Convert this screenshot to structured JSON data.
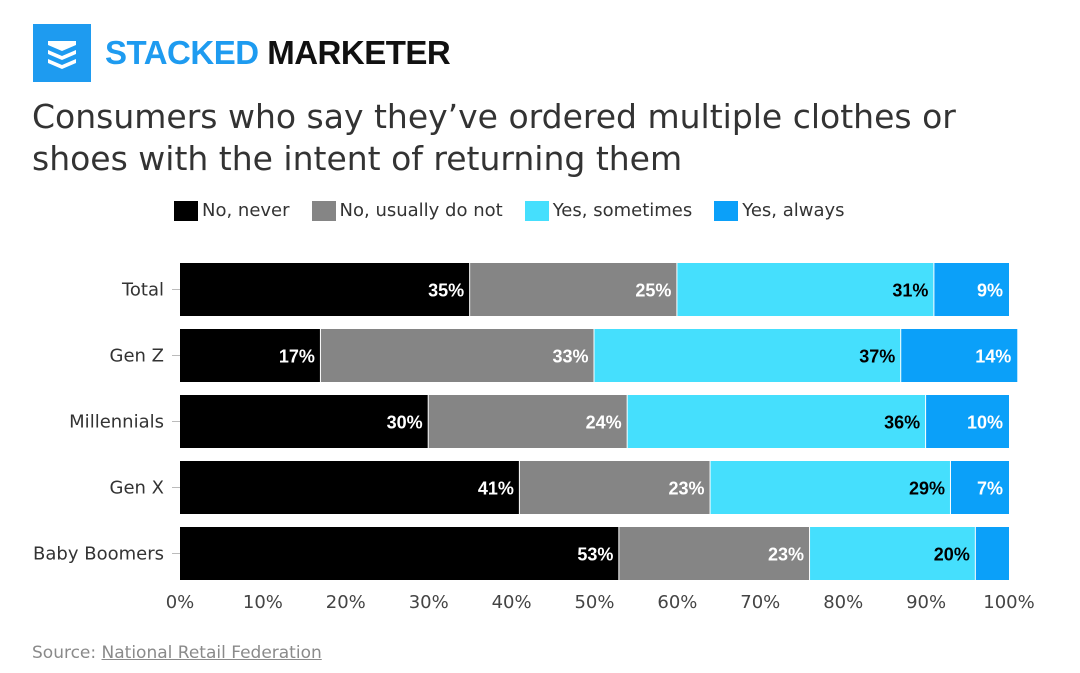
{
  "brand": {
    "name_part1": "STACKED",
    "name_part2": "MARKETER",
    "logo_icon": "stacked-layers-icon",
    "accent": "#1E9BF0"
  },
  "source": {
    "label": "Source:",
    "link_text": "National Retail Federation"
  },
  "chart_data": {
    "type": "bar",
    "orientation": "horizontal",
    "stacked": true,
    "title": "Consumers who say they’ve ordered multiple clothes or shoes with the intent of returning them",
    "categories": [
      "Total",
      "Gen Z",
      "Millennials",
      "Gen X",
      "Baby Boomers"
    ],
    "series": [
      {
        "name": "No, never",
        "color": "#000000",
        "label_color": "#ffffff",
        "values": [
          35,
          17,
          30,
          41,
          53
        ]
      },
      {
        "name": "No, usually do not",
        "color": "#858585",
        "label_color": "#ffffff",
        "values": [
          25,
          33,
          24,
          23,
          23
        ]
      },
      {
        "name": "Yes, sometimes",
        "color": "#45DFFD",
        "label_color": "#000000",
        "values": [
          31,
          37,
          36,
          29,
          20
        ]
      },
      {
        "name": "Yes, always",
        "color": "#0BA0F9",
        "label_color": "#ffffff",
        "values": [
          9,
          14,
          10,
          7,
          4
        ]
      }
    ],
    "labels": [
      [
        "35%",
        "25%",
        "31%",
        "9%"
      ],
      [
        "17%",
        "33%",
        "37%",
        "14%"
      ],
      [
        "30%",
        "24%",
        "36%",
        "10%"
      ],
      [
        "41%",
        "23%",
        "29%",
        "7%"
      ],
      [
        "53%",
        "23%",
        "20%",
        ""
      ]
    ],
    "xticks": [
      "0%",
      "10%",
      "20%",
      "30%",
      "40%",
      "50%",
      "60%",
      "70%",
      "80%",
      "90%",
      "100%"
    ],
    "xlim": [
      0,
      100
    ],
    "grid": false,
    "legend": "top"
  }
}
